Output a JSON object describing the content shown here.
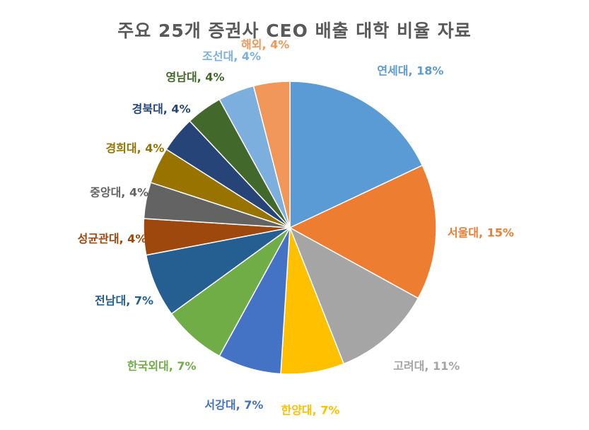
{
  "chart_data": {
    "type": "pie",
    "title": "주요 25개 증권사 CEO 배출 대학 비율 자료",
    "slices": [
      {
        "name": "연세대",
        "value": 18,
        "label": "연세대, 18%",
        "color": "#5b9bd5",
        "label_color": "#5b9bd5"
      },
      {
        "name": "서울대",
        "value": 15,
        "label": "서울대, 15%",
        "color": "#ed7d31",
        "label_color": "#ed7d31"
      },
      {
        "name": "고려대",
        "value": 11,
        "label": "고려대, 11%",
        "color": "#a5a5a5",
        "label_color": "#a5a5a5"
      },
      {
        "name": "한양대",
        "value": 7,
        "label": "한양대, 7%",
        "color": "#ffc000",
        "label_color": "#ffc000"
      },
      {
        "name": "서강대",
        "value": 7,
        "label": "서강대, 7%",
        "color": "#4472c4",
        "label_color": "#4472c4"
      },
      {
        "name": "한국외대",
        "value": 7,
        "label": "한국외대, 7%",
        "color": "#70ad47",
        "label_color": "#70ad47"
      },
      {
        "name": "전남대",
        "value": 7,
        "label": "전남대, 7%",
        "color": "#255e91",
        "label_color": "#255e91"
      },
      {
        "name": "성균관대",
        "value": 4,
        "label": "성균관대, 4%",
        "color": "#9e480e",
        "label_color": "#9e480e"
      },
      {
        "name": "중앙대",
        "value": 4,
        "label": "중앙대, 4%",
        "color": "#636363",
        "label_color": "#636363"
      },
      {
        "name": "경희대",
        "value": 4,
        "label": "경희대, 4%",
        "color": "#997300",
        "label_color": "#997300"
      },
      {
        "name": "경북대",
        "value": 4,
        "label": "경북대, 4%",
        "color": "#264478",
        "label_color": "#264478"
      },
      {
        "name": "영남대",
        "value": 4,
        "label": "영남대, 4%",
        "color": "#43682b",
        "label_color": "#43682b"
      },
      {
        "name": "조선대",
        "value": 4,
        "label": "조선대, 4%",
        "color": "#7cafdd",
        "label_color": "#7cafdd"
      },
      {
        "name": "해외",
        "value": 4,
        "label": "해외, 4%",
        "color": "#f1975a",
        "label_color": "#f1975a"
      }
    ],
    "legend": "none"
  }
}
